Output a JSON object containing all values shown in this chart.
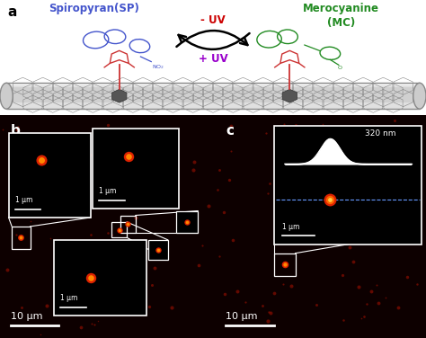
{
  "panel_a_label": "a",
  "panel_b_label": "b",
  "panel_c_label": "c",
  "sp_label": "Spiropyran(SP)",
  "mc_label_1": "Merocyanine",
  "mc_label_2": "(MC)",
  "uv_minus": "- UV",
  "uv_plus": "+ UV",
  "scale_10um": "10 μm",
  "scale_1um": "1 μm",
  "scale_320nm": "320 nm",
  "sp_color": "#4455cc",
  "mc_color": "#228B22",
  "uv_minus_color": "#cc0000",
  "uv_plus_color": "#9900cc",
  "linker_color": "#cc3333",
  "white": "#ffffff",
  "nanotube_body": "#e8e8e8",
  "nanotube_dark": "#aaaaaa",
  "defect_color": "#555555",
  "dot_red": "#cc1100",
  "dot_orange": "#ff6600",
  "dot_bright": "#ff9900",
  "bg_dark": "#0d0000"
}
